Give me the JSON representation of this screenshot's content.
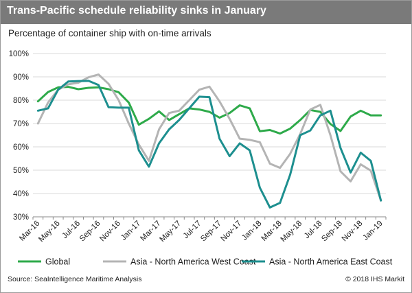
{
  "header": {
    "title": "Trans-Pacific schedule reliability sinks in January"
  },
  "footer": {
    "source": "Source: SeaIntelligence Maritime Analysis",
    "copyright": "© 2018 IHS Markit"
  },
  "chart_data": {
    "type": "line",
    "title": "Trans-Pacific schedule reliability sinks in January",
    "subtitle": "Percentage of container ship with on-time arrivals",
    "xlabel": "",
    "ylabel": "",
    "ylim": [
      30,
      100
    ],
    "yticks": [
      "30%",
      "40%",
      "50%",
      "60%",
      "70%",
      "80%",
      "90%",
      "100%"
    ],
    "grid": "horizontal",
    "legend_position": "bottom",
    "x": [
      "Mar-16",
      "Apr-16",
      "May-16",
      "Jun-16",
      "Jul-16",
      "Aug-16",
      "Sep-16",
      "Oct-16",
      "Nov-16",
      "Dec-16",
      "Jan-17",
      "Feb-17",
      "Mar-17",
      "Apr-17",
      "May-17",
      "Jun-17",
      "Jul-17",
      "Aug-17",
      "Sep-17",
      "Oct-17",
      "Nov-17",
      "Dec-17",
      "Jan-18",
      "Feb-18",
      "Mar-18",
      "Apr-18",
      "May-18",
      "Jun-18",
      "Jul-18",
      "Aug-18",
      "Sep-18",
      "Oct-18",
      "Nov-18",
      "Dec-18",
      "Jan-19"
    ],
    "xtick_labels": [
      "Mar-16",
      "May-16",
      "Jul-16",
      "Sep-16",
      "Nov-16",
      "Jan-17",
      "Mar-17",
      "May-17",
      "Jul-17",
      "Sep-17",
      "Nov-17",
      "Jan-18",
      "Mar-18",
      "May-18",
      "Jul-18",
      "Sep-18",
      "Nov-18",
      "Jan-19"
    ],
    "series": [
      {
        "name": "Global",
        "color": "#2eaa4a",
        "values": [
          79.5,
          83.5,
          85.5,
          85.7,
          84.7,
          85.3,
          85.5,
          84.7,
          83.4,
          79,
          69.5,
          72,
          75.2,
          71.5,
          74,
          76.5,
          76,
          75,
          72.5,
          74.5,
          77.8,
          76.5,
          66.7,
          67.2,
          65.7,
          67.8,
          71.5,
          75.8,
          75,
          69.8,
          66.8,
          73,
          75.5,
          73.5,
          73.5
        ]
      },
      {
        "name": "Asia - North America West Coast",
        "color": "#b4b4b4",
        "values": [
          70,
          79,
          84.5,
          86.8,
          87.5,
          89.8,
          91,
          87,
          80,
          70,
          61,
          54,
          67.5,
          74.5,
          75.5,
          80,
          84.5,
          85.8,
          79.5,
          72,
          63.5,
          63,
          62,
          52.8,
          51,
          57,
          65.5,
          76,
          78,
          65,
          49.5,
          45.2,
          52.5,
          49.8,
          37
        ]
      },
      {
        "name": "Asia - North America East Coast",
        "color": "#1d8f8f",
        "values": [
          75.5,
          76.5,
          84.5,
          88,
          88.2,
          88.3,
          86.5,
          77,
          76.8,
          76.8,
          58.5,
          51.5,
          61.5,
          67.5,
          71.5,
          76.5,
          81.5,
          81.3,
          63.5,
          56,
          61.5,
          58.5,
          42.5,
          34,
          36,
          48,
          65,
          67,
          73.5,
          75.5,
          59.5,
          49,
          57.5,
          54,
          37
        ]
      }
    ]
  }
}
